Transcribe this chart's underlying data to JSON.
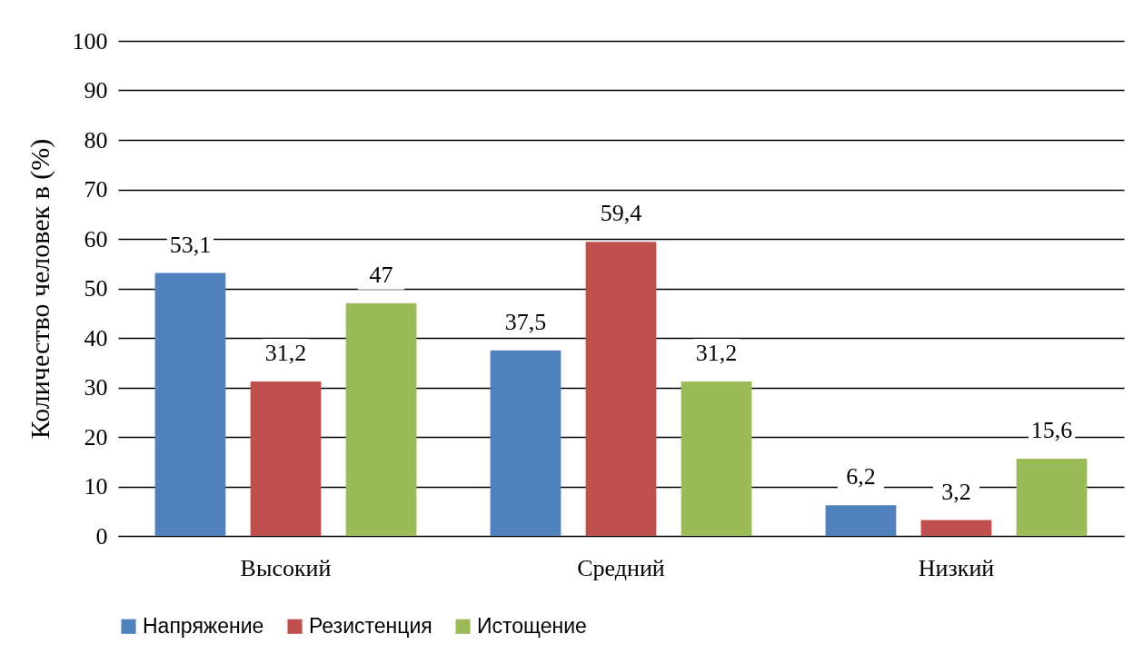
{
  "chart_data": {
    "type": "bar",
    "ylabel": "Количество человек в (%)",
    "categories": [
      "Высокий",
      "Средний",
      "Низкий"
    ],
    "series": [
      {
        "name": "Напряжение",
        "color": "#4f81bd",
        "values": [
          53.1,
          37.5,
          6.2
        ],
        "value_labels": [
          "53,1",
          "37,5",
          "6,2"
        ]
      },
      {
        "name": "Резистенция",
        "color": "#c0504d",
        "values": [
          31.2,
          59.4,
          3.2
        ],
        "value_labels": [
          "31,2",
          "59,4",
          "3,2"
        ]
      },
      {
        "name": "Истощение",
        "color": "#9bbb59",
        "values": [
          47,
          31.2,
          15.6
        ],
        "value_labels": [
          "47",
          "31,2",
          "15,6"
        ]
      }
    ],
    "ylim": [
      0,
      100
    ],
    "yticks": [
      0,
      10,
      20,
      30,
      40,
      50,
      60,
      70,
      80,
      90,
      100
    ],
    "grid": "y",
    "legend": "bottom"
  }
}
